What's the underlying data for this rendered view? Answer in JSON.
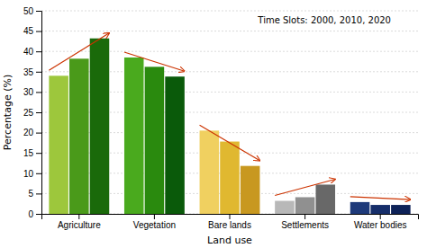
{
  "chart_data": {
    "type": "bar",
    "categories": [
      "Agriculture",
      "Vegetation",
      "Bare lands",
      "Settlements",
      "Water bodies"
    ],
    "series": [
      {
        "values": [
          34.0,
          38.5,
          20.5,
          3.2,
          2.9
        ],
        "colors": [
          "#9dc73c",
          "#4aaa1e",
          "#f0d060",
          "#b8b8b8",
          "#1e3a7a"
        ]
      },
      {
        "values": [
          38.2,
          36.2,
          17.8,
          4.1,
          2.2
        ],
        "colors": [
          "#4a9a1a",
          "#2a8a0e",
          "#e0b830",
          "#909090",
          "#162e6a"
        ]
      },
      {
        "values": [
          43.2,
          33.8,
          11.8,
          7.2,
          2.2
        ],
        "colors": [
          "#1a6a0a",
          "#0a5a0a",
          "#c89820",
          "#686868",
          "#0e2258"
        ]
      }
    ],
    "xlabel": "Land use",
    "ylabel": "Percentage (%)",
    "annotation": "Time Slots: 2000, 2010, 2020",
    "ylim": [
      0,
      50
    ],
    "yticks": [
      0,
      5,
      10,
      15,
      20,
      25,
      30,
      35,
      40,
      45,
      50
    ],
    "grid": true
  }
}
